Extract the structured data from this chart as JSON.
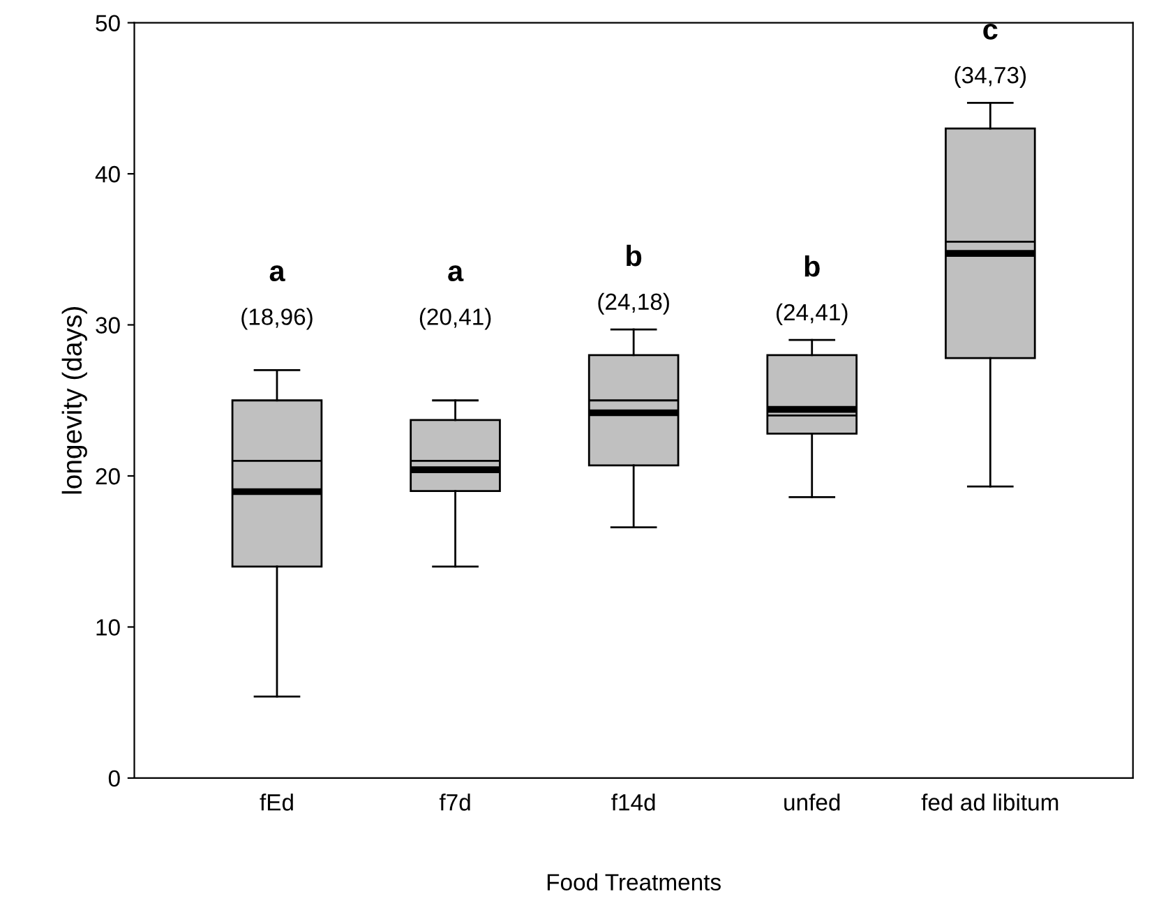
{
  "chart_data": {
    "type": "box",
    "xlabel": "Food Treatments",
    "ylabel": "longevity (days)",
    "categories": [
      "fEd",
      "f7d",
      "f14d",
      "unfed",
      "fed ad libitum"
    ],
    "color": "#c0c0c0",
    "boxes": [
      {
        "low": 5.4,
        "q1": 14.0,
        "median": 21.0,
        "q3": 25.0,
        "high": 27.0,
        "mean": 18.96
      },
      {
        "low": 14.0,
        "q1": 19.0,
        "median": 21.0,
        "q3": 23.7,
        "high": 25.0,
        "mean": 20.41
      },
      {
        "low": 16.6,
        "q1": 20.7,
        "median": 25.0,
        "q3": 28.0,
        "high": 29.7,
        "mean": 24.18
      },
      {
        "low": 18.6,
        "q1": 22.8,
        "median": 24.0,
        "q3": 28.0,
        "high": 29.0,
        "mean": 24.41
      },
      {
        "low": 19.3,
        "q1": 27.8,
        "median": 35.5,
        "q3": 43.0,
        "high": 44.7,
        "mean": 34.73
      }
    ],
    "ylim": [
      0,
      50
    ],
    "yticks": [
      0,
      10,
      20,
      30,
      40,
      50
    ],
    "grid": false,
    "annotations": [
      "a",
      "(18,96)",
      "a",
      "(20,41)",
      "b",
      "(24,18)",
      "b",
      "(24,41)",
      "c",
      "(34,73)"
    ]
  }
}
